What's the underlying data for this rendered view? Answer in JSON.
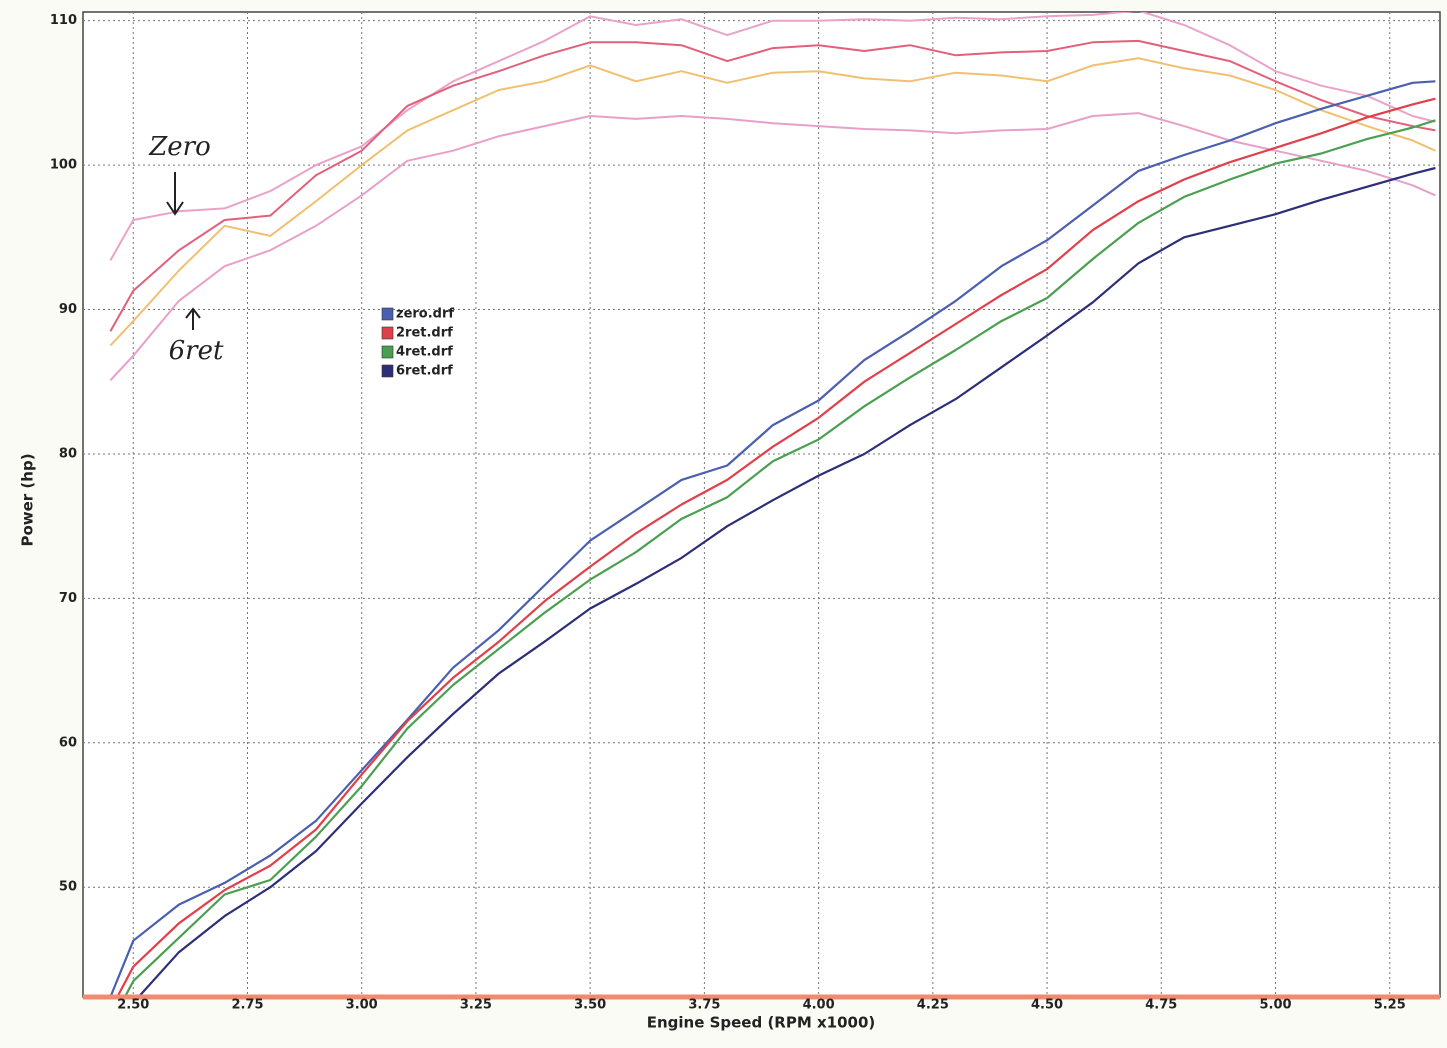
{
  "chart_data": {
    "type": "line",
    "x_label": "Engine Speed (RPM x1000)",
    "y_label": "Power (hp)",
    "xlim": [
      2.39,
      5.36
    ],
    "ylim": [
      42.4,
      110.6
    ],
    "xticks": [
      {
        "value": 2.5,
        "label": "2.50"
      },
      {
        "value": 2.75,
        "label": "2.75"
      },
      {
        "value": 3.0,
        "label": "3.00"
      },
      {
        "value": 3.25,
        "label": "3.25"
      },
      {
        "value": 3.5,
        "label": "3.50"
      },
      {
        "value": 3.75,
        "label": "3.75"
      },
      {
        "value": 4.0,
        "label": "4.00"
      },
      {
        "value": 4.25,
        "label": "4.25"
      },
      {
        "value": 4.5,
        "label": "4.50"
      },
      {
        "value": 4.75,
        "label": "4.75"
      },
      {
        "value": 5.0,
        "label": "5.00"
      },
      {
        "value": 5.25,
        "label": "5.25"
      }
    ],
    "yticks": [
      50,
      60,
      70,
      80,
      90,
      100,
      110
    ],
    "grid": true,
    "x": [
      2.45,
      2.5,
      2.6,
      2.7,
      2.8,
      2.9,
      3.0,
      3.1,
      3.2,
      3.3,
      3.4,
      3.5,
      3.6,
      3.7,
      3.8,
      3.9,
      4.0,
      4.1,
      4.2,
      4.3,
      4.4,
      4.5,
      4.6,
      4.7,
      4.8,
      4.9,
      5.0,
      5.1,
      5.2,
      5.3,
      5.35
    ],
    "series": [
      {
        "name": "zero.drf",
        "color": "#4a5fb0",
        "values": [
          42.4,
          46.3,
          48.8,
          50.3,
          52.2,
          54.6,
          58.1,
          61.6,
          65.2,
          67.8,
          70.9,
          74.0,
          76.1,
          78.2,
          79.2,
          82.0,
          83.7,
          86.5,
          88.5,
          90.6,
          93.0,
          94.8,
          97.2,
          99.6,
          100.7,
          101.7,
          102.9,
          103.9,
          104.8,
          105.7,
          105.8
        ]
      },
      {
        "name": "2ret.drf",
        "color": "#e0404a",
        "values": [
          41.5,
          44.5,
          47.5,
          49.8,
          51.5,
          54.0,
          57.8,
          61.5,
          64.5,
          67.0,
          69.8,
          72.2,
          74.5,
          76.5,
          78.2,
          80.5,
          82.5,
          85.0,
          87.0,
          89.0,
          91.0,
          92.8,
          95.5,
          97.5,
          99.0,
          100.2,
          101.2,
          102.2,
          103.3,
          104.2,
          104.6
        ]
      },
      {
        "name": "4ret.drf",
        "color": "#4aa050",
        "values": [
          40.5,
          43.5,
          46.5,
          49.5,
          50.5,
          53.5,
          57.0,
          61.0,
          64.0,
          66.5,
          69.0,
          71.3,
          73.2,
          75.5,
          77.0,
          79.5,
          81.0,
          83.3,
          85.3,
          87.2,
          89.2,
          90.8,
          93.5,
          96.0,
          97.8,
          99.0,
          100.1,
          100.8,
          101.8,
          102.6,
          103.1
        ]
      },
      {
        "name": "6ret.drf",
        "color": "#2c2f78",
        "values": [
          39.5,
          42.0,
          45.5,
          48.0,
          50.0,
          52.5,
          55.8,
          59.0,
          62.0,
          64.8,
          67.0,
          69.3,
          71.0,
          72.8,
          75.0,
          76.8,
          78.5,
          80.0,
          82.0,
          83.8,
          86.0,
          88.2,
          90.5,
          93.2,
          95.0,
          95.8,
          96.6,
          97.6,
          98.5,
          99.4,
          99.8
        ]
      }
    ],
    "overlay_series": [
      {
        "color": "#eaa2c8",
        "values": [
          93.4,
          96.2,
          96.8,
          97.0,
          98.2,
          100.0,
          101.3,
          103.8,
          105.8,
          107.2,
          108.6,
          110.3,
          109.7,
          110.1,
          109.0,
          110.0,
          110.0,
          110.1,
          110.0,
          110.2,
          110.1,
          110.3,
          110.4,
          110.7,
          109.7,
          108.3,
          106.5,
          105.5,
          104.8,
          103.4,
          103.0
        ]
      },
      {
        "color": "#e2607a",
        "values": [
          88.5,
          91.3,
          94.1,
          96.2,
          96.5,
          99.3,
          101.0,
          104.1,
          105.5,
          106.5,
          107.6,
          108.5,
          108.5,
          108.3,
          107.2,
          108.1,
          108.3,
          107.9,
          108.3,
          107.6,
          107.8,
          107.9,
          108.5,
          108.6,
          107.9,
          107.2,
          105.8,
          104.5,
          103.4,
          102.7,
          102.4
        ]
      },
      {
        "color": "#f0c070",
        "values": [
          87.5,
          89.2,
          92.7,
          95.8,
          95.1,
          97.5,
          100.0,
          102.4,
          103.8,
          105.2,
          105.8,
          106.9,
          105.8,
          106.5,
          105.7,
          106.4,
          106.5,
          106.0,
          105.8,
          106.4,
          106.2,
          105.8,
          106.9,
          107.4,
          106.7,
          106.2,
          105.2,
          103.8,
          102.7,
          101.7,
          101.0
        ]
      },
      {
        "color": "#e8a0c8",
        "values": [
          85.1,
          86.8,
          90.6,
          93.0,
          94.1,
          95.8,
          97.9,
          100.3,
          101.0,
          102.0,
          102.7,
          103.4,
          103.2,
          103.4,
          103.2,
          102.9,
          102.7,
          102.5,
          102.4,
          102.2,
          102.4,
          102.5,
          103.4,
          103.6,
          102.7,
          101.7,
          101.0,
          100.3,
          99.6,
          98.6,
          97.9
        ]
      }
    ],
    "annotations": [
      "Zero",
      "6ret"
    ]
  }
}
